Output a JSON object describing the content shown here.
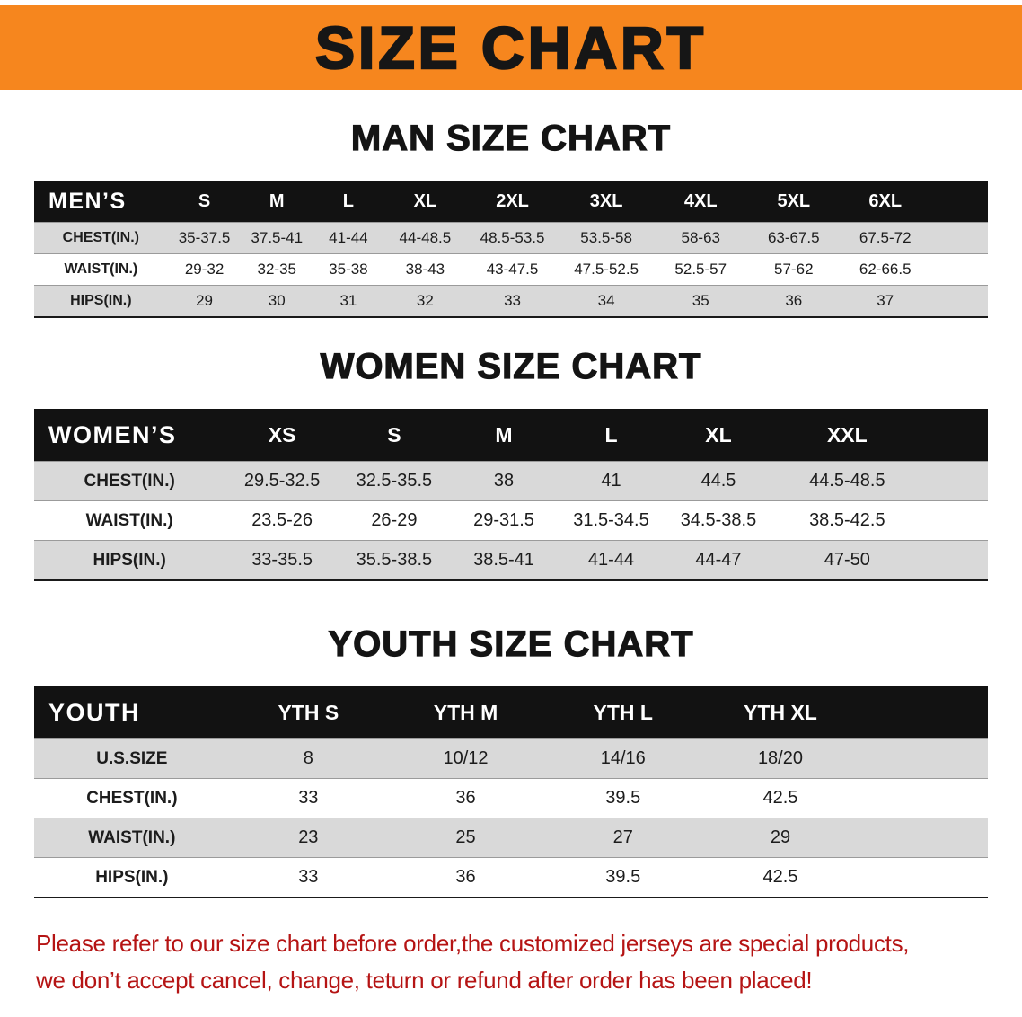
{
  "colors": {
    "banner_bg": "#f6861e",
    "header_bg": "#121212",
    "stripe": "#d9d9d9",
    "disclaimer_color": "#b51414"
  },
  "banner": {
    "title": "SIZE CHART"
  },
  "sections": [
    {
      "heading": "MAN SIZE CHART",
      "table": {
        "header": [
          "MEN’S",
          "S",
          "M",
          "L",
          "XL",
          "2XL",
          "3XL",
          "4XL",
          "5XL",
          "6XL"
        ],
        "rows": [
          [
            "CHEST(IN.)",
            "35-37.5",
            "37.5-41",
            "41-44",
            "44-48.5",
            "48.5-53.5",
            "53.5-58",
            "58-63",
            "63-67.5",
            "67.5-72"
          ],
          [
            "WAIST(IN.)",
            "29-32",
            "32-35",
            "35-38",
            "38-43",
            "43-47.5",
            "47.5-52.5",
            "52.5-57",
            "57-62",
            "62-66.5"
          ],
          [
            "HIPS(IN.)",
            "29",
            "30",
            "31",
            "32",
            "33",
            "34",
            "35",
            "36",
            "37"
          ]
        ]
      }
    },
    {
      "heading": "WOMEN SIZE CHART",
      "table": {
        "header": [
          "WOMEN’S",
          "XS",
          "S",
          "M",
          "L",
          "XL",
          "XXL"
        ],
        "rows": [
          [
            "CHEST(IN.)",
            "29.5-32.5",
            "32.5-35.5",
            "38",
            "41",
            "44.5",
            "44.5-48.5"
          ],
          [
            "WAIST(IN.)",
            "23.5-26",
            "26-29",
            "29-31.5",
            "31.5-34.5",
            "34.5-38.5",
            "38.5-42.5"
          ],
          [
            "HIPS(IN.)",
            "33-35.5",
            "35.5-38.5",
            "38.5-41",
            "41-44",
            "44-47",
            "47-50"
          ]
        ]
      }
    },
    {
      "heading": "YOUTH SIZE CHART",
      "table": {
        "header": [
          "YOUTH",
          "YTH S",
          "YTH M",
          "YTH L",
          "YTH XL"
        ],
        "rows": [
          [
            "U.S.SIZE",
            "8",
            "10/12",
            "14/16",
            "18/20"
          ],
          [
            "CHEST(IN.)",
            "33",
            "36",
            "39.5",
            "42.5"
          ],
          [
            "WAIST(IN.)",
            "23",
            "25",
            "27",
            "29"
          ],
          [
            "HIPS(IN.)",
            "33",
            "36",
            "39.5",
            "42.5"
          ]
        ]
      }
    }
  ],
  "footer": {
    "lines": [
      "Please refer to our size chart before order,the customized jerseys are special products,",
      "we don’t accept cancel, change, teturn or refund after order has been placed!"
    ]
  }
}
